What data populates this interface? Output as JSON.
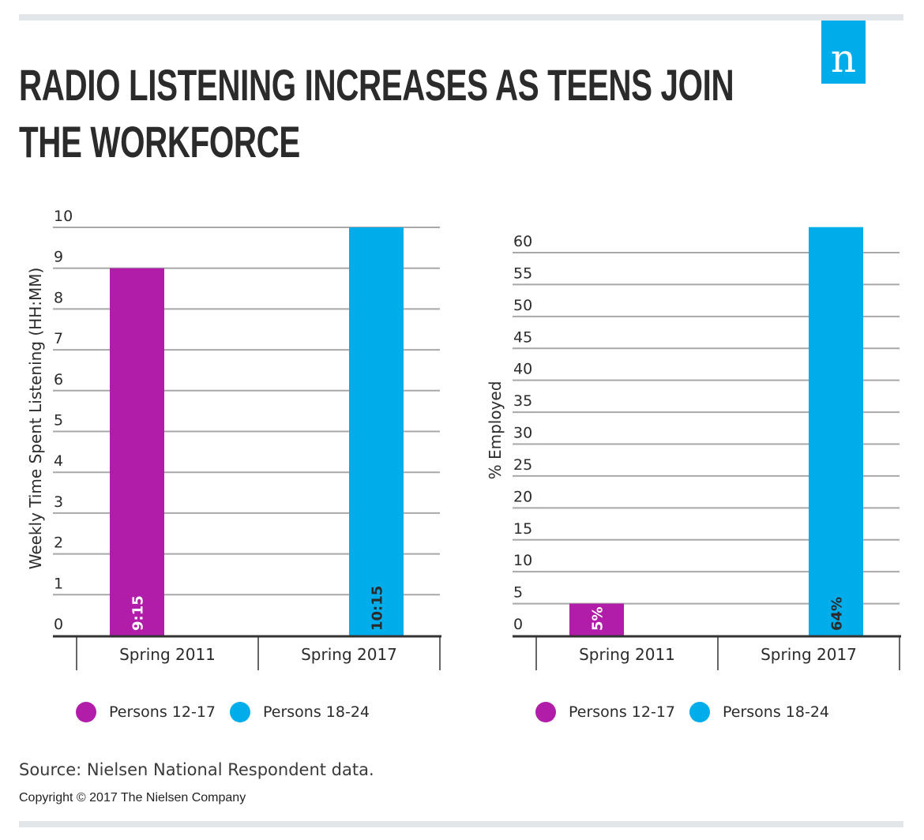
{
  "header": {
    "title": "RADIO LISTENING INCREASES AS TEENS JOIN THE WORKFORCE",
    "logo_glyph": "n",
    "logo_name": "nielsen-logo",
    "brand_color": "#00adeb"
  },
  "colors": {
    "persons_12_17": "#b11da9",
    "persons_18_24": "#00adeb",
    "gridline": "#a8a8a8",
    "axis": "#333333"
  },
  "chart_data": [
    {
      "type": "bar",
      "title": "",
      "xlabel": "",
      "ylabel": "Weekly Time Spent Listening (HH:MM)",
      "ylim": [
        0,
        10
      ],
      "yticks": [
        "0",
        "1",
        "2",
        "3",
        "4",
        "5",
        "6",
        "7",
        "8",
        "9",
        "10"
      ],
      "grid": true,
      "categories": [
        "Spring 2011",
        "Spring 2017"
      ],
      "series": [
        {
          "name": "Persons 12-17",
          "category": "Spring 2011",
          "value": 9.25,
          "drawn_value": 9,
          "label": "9:15"
        },
        {
          "name": "Persons 18-24",
          "category": "Spring 2017",
          "value": 10.25,
          "drawn_value": 10,
          "label": "10:15"
        }
      ],
      "legend": [
        "Persons 12-17",
        "Persons 18-24"
      ],
      "legend_position": "bottom"
    },
    {
      "type": "bar",
      "title": "",
      "xlabel": "",
      "ylabel": "% Employed",
      "ylim": [
        0,
        64
      ],
      "yticks": [
        "0",
        "5",
        "10",
        "15",
        "20",
        "25",
        "30",
        "35",
        "40",
        "45",
        "50",
        "55",
        "60"
      ],
      "grid": true,
      "categories": [
        "Spring 2011",
        "Spring 2017"
      ],
      "series": [
        {
          "name": "Persons 12-17",
          "category": "Spring 2011",
          "value": 5,
          "drawn_value": 5,
          "label": "5%"
        },
        {
          "name": "Persons 18-24",
          "category": "Spring 2017",
          "value": 64,
          "drawn_value": 64,
          "label": "64%"
        }
      ],
      "legend": [
        "Persons 12-17",
        "Persons 18-24"
      ],
      "legend_position": "bottom"
    }
  ],
  "footer": {
    "source": "Source: Nielsen National Respondent data.",
    "copyright": "Copyright © 2017 The Nielsen Company"
  }
}
